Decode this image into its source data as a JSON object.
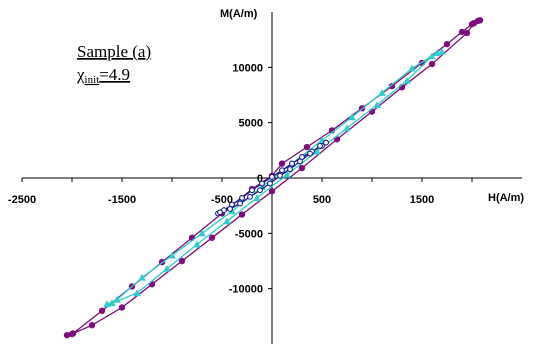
{
  "chart_data": {
    "type": "scatter",
    "title": "",
    "xlabel": "H(A/m)",
    "ylabel": "M(A/m)",
    "xlim": [
      -2500,
      2500
    ],
    "ylim": [
      -15000,
      15000
    ],
    "x_ticks": [
      -2500,
      -1500,
      -500,
      500,
      1500
    ],
    "x_tick_labels": [
      "-2500",
      "-1500",
      "-500",
      "500",
      "1500"
    ],
    "y_ticks": [
      -10000,
      -5000,
      0,
      5000,
      10000
    ],
    "y_tick_labels": [
      "-10000",
      "-5000",
      "0",
      "5000",
      "10000"
    ],
    "grid": false,
    "legend": "none",
    "annotation": {
      "line1": "Sample (a)",
      "chi": "χ",
      "sub": "init",
      "value": "=4.9"
    },
    "series": [
      {
        "marker": "circle",
        "color": "#7b0f7b",
        "points": [
          [
            -2050,
            -14200
          ],
          [
            -1990,
            -14050
          ],
          [
            -1700,
            -12000
          ],
          [
            -1400,
            -9800
          ],
          [
            -1100,
            -7600
          ],
          [
            -800,
            -5400
          ],
          [
            -500,
            -3200
          ],
          [
            -200,
            -1000
          ],
          [
            0,
            200
          ],
          [
            100,
            1300
          ],
          [
            350,
            2800
          ],
          [
            600,
            4300
          ],
          [
            900,
            6300
          ],
          [
            1200,
            8300
          ],
          [
            1500,
            10400
          ],
          [
            1750,
            12100
          ],
          [
            1900,
            13200
          ],
          [
            2000,
            13900
          ],
          [
            2060,
            14200
          ],
          [
            2080,
            14250
          ],
          [
            2020,
            14000
          ],
          [
            1950,
            13100
          ],
          [
            1600,
            10300
          ],
          [
            1300,
            8200
          ],
          [
            1000,
            6000
          ],
          [
            650,
            3500
          ],
          [
            300,
            900
          ],
          [
            0,
            -1200
          ],
          [
            -300,
            -3300
          ],
          [
            -600,
            -5400
          ],
          [
            -900,
            -7500
          ],
          [
            -1200,
            -9600
          ],
          [
            -1500,
            -11700
          ],
          [
            -1800,
            -13300
          ],
          [
            -2000,
            -14100
          ]
        ]
      },
      {
        "marker": "triangle",
        "color": "#33cccc",
        "points": [
          [
            -1650,
            -11400
          ],
          [
            -1550,
            -11000
          ],
          [
            -1300,
            -9000
          ],
          [
            -1000,
            -7000
          ],
          [
            -700,
            -5000
          ],
          [
            -400,
            -3000
          ],
          [
            -100,
            -800
          ],
          [
            200,
            1300
          ],
          [
            500,
            3400
          ],
          [
            800,
            5500
          ],
          [
            1100,
            7700
          ],
          [
            1400,
            9900
          ],
          [
            1650,
            11300
          ],
          [
            1700,
            11400
          ],
          [
            1600,
            11000
          ],
          [
            1350,
            8800
          ],
          [
            1050,
            6600
          ],
          [
            750,
            4500
          ],
          [
            450,
            2400
          ],
          [
            150,
            300
          ],
          [
            -150,
            -1800
          ],
          [
            -450,
            -3900
          ],
          [
            -750,
            -6000
          ],
          [
            -1050,
            -8200
          ],
          [
            -1350,
            -10400
          ],
          [
            -1600,
            -11300
          ]
        ]
      },
      {
        "marker": "open-circle",
        "color": "#1a1a8c",
        "points": [
          [
            -540,
            -3200
          ],
          [
            -480,
            -2900
          ],
          [
            -400,
            -2400
          ],
          [
            -300,
            -1800
          ],
          [
            -200,
            -1100
          ],
          [
            -100,
            -500
          ],
          [
            0,
            100
          ],
          [
            100,
            700
          ],
          [
            200,
            1300
          ],
          [
            300,
            1900
          ],
          [
            400,
            2400
          ],
          [
            500,
            2900
          ],
          [
            540,
            3200
          ],
          [
            480,
            2900
          ],
          [
            380,
            2200
          ],
          [
            280,
            1500
          ],
          [
            180,
            800
          ],
          [
            80,
            200
          ],
          [
            -20,
            -500
          ],
          [
            -120,
            -1100
          ],
          [
            -220,
            -1700
          ],
          [
            -320,
            -2300
          ],
          [
            -420,
            -2800
          ],
          [
            -520,
            -3100
          ]
        ]
      }
    ]
  }
}
